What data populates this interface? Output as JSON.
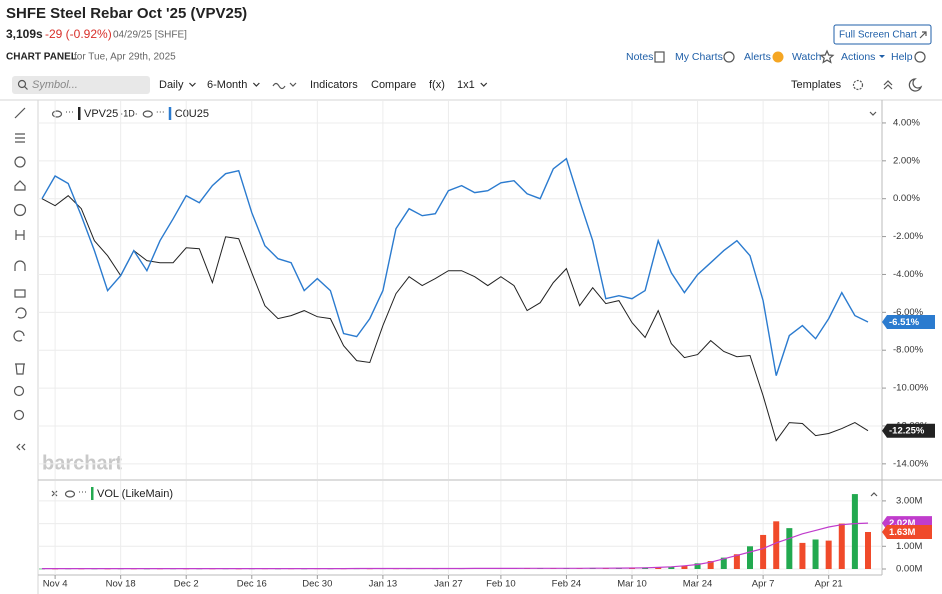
{
  "header": {
    "title": "SHFE Steel Rebar Oct '25 (VPV25)",
    "price": "3,109s",
    "change": "-29 (-0.92%)",
    "date": "04/29/25 [SHFE]",
    "full_screen": "Full Screen Chart",
    "panel_label": "CHART PANEL",
    "panel_date": "for Tue, Apr 29th, 2025",
    "links": [
      "Notes",
      "My Charts",
      "Alerts",
      "Watch",
      "Actions",
      "Help"
    ]
  },
  "toolbar": {
    "symbol_placeholder": "Symbol...",
    "items": [
      {
        "label": "Daily",
        "dropdown": true
      },
      {
        "label": "6-Month",
        "dropdown": true
      },
      {
        "label": "Indicators",
        "dropdown": false
      },
      {
        "label": "Compare",
        "dropdown": false
      },
      {
        "label": "f(x)",
        "dropdown": false
      },
      {
        "label": "1x1",
        "dropdown": true
      }
    ],
    "templates": "Templates"
  },
  "watermark": "barchart",
  "chart_data": [
    {
      "type": "line",
      "x": [
        "Nov 1",
        "Nov 4",
        "Nov 6",
        "Nov 8",
        "Nov 12",
        "Nov 14",
        "Nov 18",
        "Nov 20",
        "Nov 22",
        "Nov 26",
        "Nov 28",
        "Dec 2",
        "Dec 4",
        "Dec 6",
        "Dec 10",
        "Dec 12",
        "Dec 16",
        "Dec 18",
        "Dec 20",
        "Dec 24",
        "Dec 26",
        "Dec 30",
        "Jan 2",
        "Jan 3",
        "Jan 7",
        "Jan 9",
        "Jan 13",
        "Jan 15",
        "Jan 17",
        "Jan 21",
        "Jan 23",
        "Jan 27",
        "Feb 5",
        "Feb 6",
        "Feb 7",
        "Feb 10",
        "Feb 12",
        "Feb 14",
        "Feb 18",
        "Feb 20",
        "Feb 24",
        "Feb 26",
        "Feb 28",
        "Mar 4",
        "Mar 6",
        "Mar 10",
        "Mar 12",
        "Mar 14",
        "Mar 18",
        "Mar 20",
        "Mar 24",
        "Mar 26",
        "Mar 28",
        "Apr 1",
        "Apr 3",
        "Apr 7",
        "Apr 9",
        "Apr 11",
        "Apr 15",
        "Apr 17",
        "Apr 21",
        "Apr 23",
        "Apr 25",
        "Apr 29"
      ],
      "xticks": [
        "Nov 4",
        "Nov 18",
        "Dec 2",
        "Dec 16",
        "Dec 30",
        "Jan 13",
        "Jan 27",
        "Feb 10",
        "Feb 24",
        "Mar 10",
        "Mar 24",
        "Apr 7",
        "Apr 21"
      ],
      "ylim": [
        -14.8,
        5
      ],
      "yticks": [
        {
          "value": 4,
          "label": "4.00%"
        },
        {
          "value": 2,
          "label": "2.00%"
        },
        {
          "value": 0,
          "label": "0.00%"
        },
        {
          "value": -2,
          "label": "-2.00%"
        },
        {
          "value": -4,
          "label": "-4.00%"
        },
        {
          "value": -6,
          "label": "-6.00%"
        },
        {
          "value": -8,
          "label": "-8.00%"
        },
        {
          "value": -10,
          "label": "-10.00%"
        },
        {
          "value": -12,
          "label": "-12.00%"
        },
        {
          "value": -14,
          "label": "-14.00%"
        }
      ],
      "grid": true,
      "series": [
        {
          "name": "VPV25",
          "interval": "·1D·",
          "color": "#222222",
          "end_label": "-12.25%",
          "values": [
            0,
            -0.37,
            0.16,
            -0.53,
            -2.22,
            -3.01,
            -4.06,
            -2.74,
            -3.27,
            -3.38,
            -3.38,
            -2.59,
            -2.64,
            -4.43,
            -2.01,
            -2.11,
            -3.91,
            -5.65,
            -6.33,
            -6.17,
            -5.91,
            -6.23,
            -6.33,
            -7.76,
            -8.55,
            -8.65,
            -6.7,
            -5.01,
            -4.12,
            -4.59,
            -4.22,
            -3.8,
            -3.8,
            -4.12,
            -4.59,
            -4.12,
            -4.59,
            -5.91,
            -5.49,
            -4.43,
            -3.69,
            -5.65,
            -4.7,
            -5.54,
            -5.38,
            -6.54,
            -7.33,
            -5.91,
            -7.65,
            -8.39,
            -8.23,
            -7.49,
            -8.07,
            -8.34,
            -8.28,
            -10.4,
            -12.77,
            -11.82,
            -11.87,
            -12.51,
            -12.4,
            -12.14,
            -11.82,
            -12.25
          ]
        },
        {
          "name": "C0U25",
          "color": "#2b7bcf",
          "end_label": "-6.51%",
          "values": [
            0,
            1.2,
            0.8,
            -0.9,
            -2.74,
            -4.85,
            -4.06,
            -2.74,
            -3.8,
            -2.22,
            -1.06,
            0.16,
            -0.21,
            0.69,
            1.32,
            1.48,
            -0.74,
            -2.48,
            -3.17,
            -3.38,
            -4.85,
            -4.22,
            -4.85,
            -7.12,
            -7.28,
            -6.33,
            -4.85,
            -1.58,
            -0.53,
            -0.9,
            -0.79,
            0.42,
            0.69,
            0.32,
            0.42,
            0.84,
            0.95,
            0.26,
            0,
            1.58,
            2.11,
            -0.11,
            -2.22,
            -5.28,
            -5.12,
            -5.28,
            -4.85,
            -2.22,
            -3.91,
            -4.96,
            -4.01,
            -3.38,
            -2.74,
            -2.22,
            -3.01,
            -5.38,
            -9.34,
            -7.23,
            -6.7,
            -7.39,
            -6.33,
            -4.96,
            -6.17,
            -6.51
          ]
        }
      ]
    },
    {
      "type": "bar",
      "legend": "VOL (LikeMain)",
      "ylim": [
        0,
        3700000
      ],
      "yticks": [
        {
          "value": 3000000,
          "label": "3.00M"
        },
        {
          "value": 2000000,
          "label": "2.00M"
        },
        {
          "value": 1000000,
          "label": "1.00M"
        },
        {
          "value": 0,
          "label": "0.00M"
        }
      ],
      "grid": true,
      "end_label": "1.63M",
      "values": [
        15000,
        12000,
        18000,
        14000,
        16000,
        13000,
        17000,
        15000,
        14000,
        16000,
        18000,
        15000,
        17000,
        16000,
        19000,
        14000,
        18000,
        20000,
        17000,
        19000,
        16000,
        21000,
        18000,
        20000,
        22000,
        19000,
        24000,
        21000,
        23000,
        25000,
        22000,
        26000,
        24000,
        28000,
        30000,
        26000,
        32000,
        29000,
        35000,
        31000,
        38000,
        34000,
        40000,
        45000,
        52000,
        60000,
        70000,
        85000,
        100000,
        130000,
        250000,
        350000,
        500000,
        650000,
        1000000,
        1500000,
        2100000,
        1800000,
        1150000,
        1300000,
        1250000,
        2000000,
        3300000,
        1630000
      ],
      "colors": [
        "#22a94f",
        "#f04a2a",
        "#22a94f",
        "#f04a2a",
        "#22a94f",
        "#f04a2a",
        "#22a94f",
        "#f04a2a",
        "#22a94f",
        "#f04a2a",
        "#22a94f",
        "#f04a2a",
        "#22a94f",
        "#f04a2a",
        "#22a94f",
        "#f04a2a",
        "#22a94f",
        "#f04a2a",
        "#22a94f",
        "#f04a2a",
        "#22a94f",
        "#f04a2a",
        "#22a94f",
        "#f04a2a",
        "#22a94f",
        "#f04a2a",
        "#22a94f",
        "#f04a2a",
        "#22a94f",
        "#f04a2a",
        "#22a94f",
        "#f04a2a",
        "#22a94f",
        "#f04a2a",
        "#22a94f",
        "#f04a2a",
        "#22a94f",
        "#f04a2a",
        "#22a94f",
        "#f04a2a",
        "#22a94f",
        "#f04a2a",
        "#22a94f",
        "#f04a2a",
        "#22a94f",
        "#f04a2a",
        "#22a94f",
        "#f04a2a",
        "#22a94f",
        "#f04a2a",
        "#22a94f",
        "#f04a2a",
        "#22a94f",
        "#f04a2a",
        "#22a94f",
        "#f04a2a",
        "#f04a2a",
        "#22a94f",
        "#f04a2a",
        "#22a94f",
        "#f04a2a",
        "#f04a2a",
        "#22a94f",
        "#f04a2a"
      ],
      "average": {
        "color": "#c03ccc",
        "end_label": "2.02M",
        "values": [
          18000,
          17000,
          17000,
          16000,
          16000,
          16000,
          16000,
          16000,
          16000,
          16000,
          16000,
          16000,
          16000,
          16000,
          17000,
          17000,
          17000,
          17000,
          18000,
          18000,
          18000,
          18000,
          19000,
          19000,
          20000,
          20000,
          21000,
          21000,
          22000,
          22000,
          23000,
          23000,
          24000,
          25000,
          26000,
          27000,
          28000,
          29000,
          30000,
          31000,
          32000,
          33000,
          35000,
          37000,
          40000,
          45000,
          55000,
          70000,
          95000,
          140000,
          200000,
          300000,
          450000,
          600000,
          750000,
          900000,
          1150000,
          1350000,
          1550000,
          1700000,
          1850000,
          1950000,
          2000000,
          2020000
        ]
      }
    }
  ]
}
